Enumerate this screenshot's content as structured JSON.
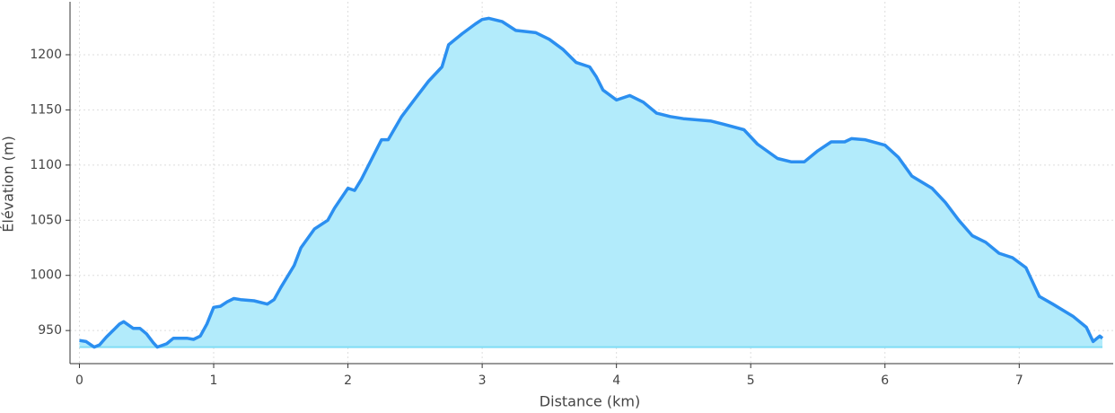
{
  "chart_data": {
    "type": "area",
    "x_label": "Distance (km)",
    "y_label": "Élévation (m)",
    "x": [
      0,
      0.05,
      0.11,
      0.15,
      0.2,
      0.25,
      0.3,
      0.33,
      0.4,
      0.45,
      0.5,
      0.55,
      0.58,
      0.65,
      0.7,
      0.8,
      0.85,
      0.9,
      0.95,
      1.0,
      1.05,
      1.1,
      1.15,
      1.2,
      1.3,
      1.4,
      1.45,
      1.5,
      1.6,
      1.65,
      1.75,
      1.85,
      1.9,
      2.0,
      2.05,
      2.1,
      2.2,
      2.25,
      2.3,
      2.4,
      2.5,
      2.6,
      2.7,
      2.75,
      2.85,
      2.95,
      3.0,
      3.05,
      3.15,
      3.25,
      3.4,
      3.5,
      3.6,
      3.7,
      3.8,
      3.85,
      3.9,
      4.0,
      4.1,
      4.2,
      4.3,
      4.4,
      4.5,
      4.7,
      4.8,
      4.95,
      5.05,
      5.2,
      5.3,
      5.4,
      5.5,
      5.6,
      5.7,
      5.75,
      5.85,
      6.0,
      6.1,
      6.2,
      6.35,
      6.45,
      6.55,
      6.65,
      6.75,
      6.85,
      6.95,
      7.05,
      7.15,
      7.25,
      7.4,
      7.5,
      7.55,
      7.6,
      7.62
    ],
    "series": [
      {
        "name": "Élévation",
        "color": "#2b8ff0",
        "fill": "#b2ebfb",
        "values": [
          941,
          940,
          935,
          937,
          944,
          950,
          956,
          958,
          952,
          952,
          947,
          939,
          935,
          938,
          943,
          943,
          942,
          945,
          956,
          971,
          972,
          976,
          979,
          978,
          977,
          974,
          978,
          989,
          1009,
          1025,
          1042,
          1050,
          1061,
          1079,
          1077,
          1087,
          1111,
          1123,
          1123,
          1144,
          1160,
          1176,
          1189,
          1209,
          1219,
          1228,
          1232,
          1233,
          1230,
          1222,
          1220,
          1214,
          1205,
          1193,
          1189,
          1180,
          1168,
          1159,
          1163,
          1157,
          1147,
          1144,
          1142,
          1140,
          1137,
          1132,
          1119,
          1106,
          1103,
          1103,
          1113,
          1121,
          1121,
          1124,
          1123,
          1118,
          1107,
          1090,
          1079,
          1066,
          1050,
          1036,
          1030,
          1020,
          1016,
          1007,
          981,
          974,
          963,
          953,
          940,
          945,
          943
        ]
      }
    ],
    "xlim": [
      -0.07,
      7.7
    ],
    "ylim": [
      920,
      1248
    ],
    "xticks": [
      0,
      1,
      2,
      3,
      4,
      5,
      6,
      7
    ],
    "yticks": [
      950,
      1000,
      1050,
      1100,
      1150,
      1200
    ],
    "grid": true
  }
}
